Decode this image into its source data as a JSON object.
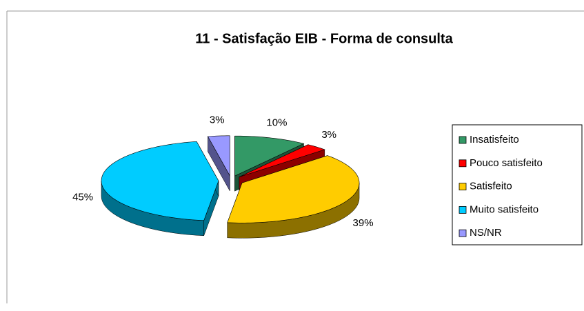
{
  "chart_data": {
    "type": "pie",
    "title": "11 - Satisfação EIB - Forma de consulta",
    "categories": [
      "Insatisfeito",
      "Pouco satisfeito",
      "Satisfeito",
      "Muito satisfeito",
      "NS/NR"
    ],
    "values": [
      10,
      3,
      39,
      45,
      3
    ],
    "value_labels": [
      "10%",
      "3%",
      "39%",
      "45%",
      "3%"
    ],
    "colors": [
      "#339966",
      "#ff0000",
      "#ffcc00",
      "#00ccff",
      "#9999ff"
    ],
    "legend": "right"
  }
}
